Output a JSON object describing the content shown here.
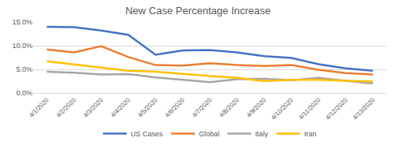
{
  "chart_data": {
    "type": "line",
    "title": "New Case Percentage Increase",
    "categories": [
      "4/1/2020",
      "4/2/2020",
      "4/3/2020",
      "4/4/2020",
      "4/5/2020",
      "4/6/2020",
      "4/7/2020",
      "4/8/2020",
      "4/9/2020",
      "4/10/2020",
      "4/11/2020",
      "4/12/2020",
      "4/13/2020"
    ],
    "series": [
      {
        "name": "US Cases",
        "color": "#4472c4",
        "values": [
          14.0,
          13.9,
          13.2,
          12.3,
          8.1,
          9.0,
          9.1,
          8.6,
          7.8,
          7.4,
          6.1,
          5.2,
          4.7
        ]
      },
      {
        "name": "Global",
        "color": "#ed7d31",
        "values": [
          9.2,
          8.6,
          9.9,
          7.6,
          5.9,
          5.8,
          6.3,
          5.9,
          5.7,
          5.9,
          4.9,
          4.2,
          3.9
        ]
      },
      {
        "name": "Italy",
        "color": "#a5a5a5",
        "values": [
          4.5,
          4.3,
          3.9,
          4.0,
          3.3,
          2.8,
          2.3,
          2.9,
          3.0,
          2.7,
          3.2,
          2.6,
          2.0
        ]
      },
      {
        "name": "Iran",
        "color": "#ffc000",
        "values": [
          6.7,
          6.0,
          5.4,
          4.7,
          4.5,
          4.0,
          3.6,
          3.2,
          2.5,
          2.8,
          2.8,
          2.6,
          2.4
        ]
      }
    ],
    "ylim": [
      0,
      15
    ],
    "yticks": [
      {
        "value": 0,
        "label": "0.0%"
      },
      {
        "value": 5,
        "label": "5.0%"
      },
      {
        "value": 10,
        "label": "10.0%"
      },
      {
        "value": 15,
        "label": "15.0%"
      }
    ],
    "grid": true,
    "legend": "bottom"
  }
}
